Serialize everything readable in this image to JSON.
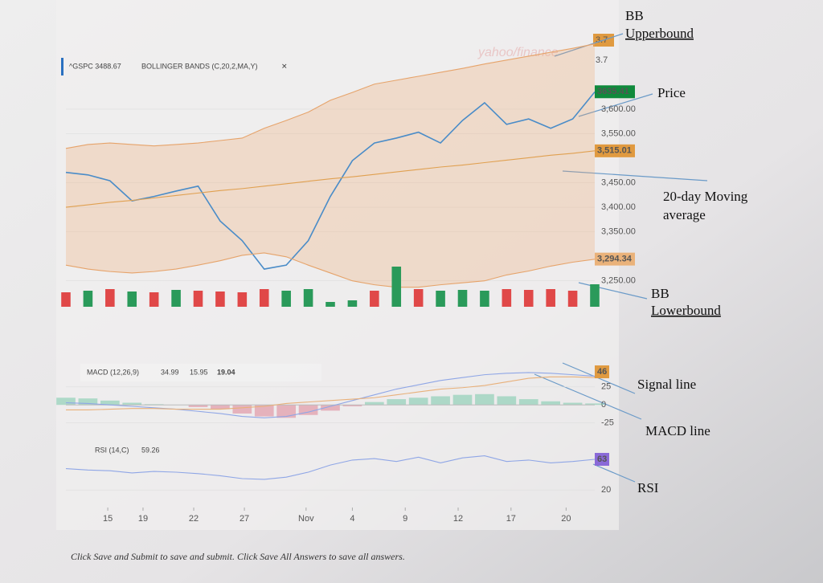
{
  "chart_data": [
    {
      "type": "line",
      "title": "^GSPC 3488.67",
      "indicator": "BOLLINGER BANDS (C,20,2,MA,Y)",
      "x": [
        0,
        1,
        2,
        3,
        4,
        5,
        6,
        7,
        8,
        9,
        10,
        11,
        12,
        13,
        14,
        15,
        16,
        17,
        18,
        19,
        20,
        21,
        22,
        23,
        24
      ],
      "xlim": [
        0,
        24
      ],
      "ylim": [
        3225,
        3757
      ],
      "yticks": [
        {
          "value": 3250,
          "label": "3,250.00"
        },
        {
          "value": 3350,
          "label": "3,350.00"
        },
        {
          "value": 3400,
          "label": "3,400.00"
        },
        {
          "value": 3450,
          "label": "3,450.00"
        },
        {
          "value": 3550,
          "label": "3,550.00"
        },
        {
          "value": 3600,
          "label": "3,600.00"
        }
      ],
      "series": [
        {
          "name": "Price",
          "color": "#4a8cc8",
          "values": [
            3471,
            3466,
            3454,
            3413,
            3422,
            3433,
            3443,
            3372,
            3332,
            3274,
            3282,
            3332,
            3422,
            3495,
            3531,
            3541,
            3553,
            3531,
            3577,
            3613,
            3569,
            3580,
            3561,
            3580,
            3635
          ]
        },
        {
          "name": "BB Upperbound",
          "color": "#e6a36a",
          "values": [
            3520,
            3528,
            3531,
            3528,
            3525,
            3528,
            3531,
            3536,
            3541,
            3561,
            3577,
            3594,
            3618,
            3634,
            3651,
            3659,
            3667,
            3675,
            3683,
            3692,
            3700,
            3708,
            3716,
            3724,
            3733
          ]
        },
        {
          "name": "BB Lowerbound",
          "color": "#e6a36a",
          "values": [
            3282,
            3274,
            3269,
            3266,
            3269,
            3274,
            3282,
            3291,
            3302,
            3307,
            3299,
            3282,
            3266,
            3250,
            3242,
            3237,
            3237,
            3242,
            3246,
            3250,
            3262,
            3270,
            3280,
            3288,
            3294
          ]
        },
        {
          "name": "20-day Moving average",
          "color": "#e0a050",
          "values": [
            3400,
            3405,
            3410,
            3414,
            3419,
            3424,
            3429,
            3434,
            3438,
            3443,
            3448,
            3453,
            3458,
            3462,
            3467,
            3472,
            3477,
            3482,
            3486,
            3491,
            3496,
            3501,
            3506,
            3510,
            3515
          ]
        }
      ],
      "badges": [
        {
          "value": 3635.41,
          "label": "3635.41",
          "color": "#108a3c"
        },
        {
          "value": 3515.01,
          "label": "3,515.01",
          "color": "#e09a40"
        },
        {
          "value": 3294.34,
          "label": "3,294.34",
          "color": "#eab27a"
        }
      ],
      "top_labels": [
        "3.7",
        "3.7"
      ],
      "watermark": "yahoo/finance"
    },
    {
      "type": "bar",
      "x": [
        0,
        1,
        2,
        3,
        4,
        5,
        6,
        7,
        8,
        9,
        10,
        11,
        12,
        13,
        14,
        15,
        16,
        17,
        18,
        19,
        20,
        21,
        22,
        23,
        24
      ],
      "xlim": [
        0,
        24
      ],
      "ylim": [
        0,
        60
      ],
      "values": [
        18,
        20,
        22,
        19,
        18,
        21,
        20,
        19,
        18,
        22,
        20,
        22,
        6,
        8,
        20,
        50,
        22,
        20,
        21,
        20,
        22,
        21,
        22,
        20,
        28
      ],
      "colors": [
        "#e04848",
        "#2a9a5a",
        "#e04848",
        "#2a9a5a",
        "#e04848",
        "#2a9a5a",
        "#e04848",
        "#e04848",
        "#e04848",
        "#e04848",
        "#2a9a5a",
        "#2a9a5a",
        "#2a9a5a",
        "#2a9a5a",
        "#e04848",
        "#2a9a5a",
        "#e04848",
        "#2a9a5a",
        "#2a9a5a",
        "#2a9a5a",
        "#e04848",
        "#e04848",
        "#e04848",
        "#e04848",
        "#2a9a5a"
      ]
    },
    {
      "type": "line",
      "title": "MACD (12,26,9)",
      "readings": [
        "34.99",
        "15.95",
        "19.04"
      ],
      "x": [
        0,
        1,
        2,
        3,
        4,
        5,
        6,
        7,
        8,
        9,
        10,
        11,
        12,
        13,
        14,
        15,
        16,
        17,
        18,
        19,
        20,
        21,
        22,
        23,
        24
      ],
      "xlim": [
        0,
        24
      ],
      "ylim": [
        -40,
        55
      ],
      "yticks": [
        -25,
        0,
        25
      ],
      "histogram": [
        10,
        9,
        6,
        3,
        1,
        0,
        -3,
        -6,
        -12,
        -16,
        -18,
        -14,
        -8,
        -2,
        4,
        8,
        10,
        12,
        14,
        15,
        12,
        8,
        5,
        3,
        2
      ],
      "series": [
        {
          "name": "MACD line",
          "color": "#8fa6e6",
          "values": [
            3,
            2,
            0,
            -2,
            -4,
            -6,
            -9,
            -12,
            -16,
            -18,
            -16,
            -10,
            -2,
            6,
            14,
            22,
            28,
            34,
            38,
            42,
            44,
            45,
            44,
            42,
            40
          ]
        },
        {
          "name": "Signal line",
          "color": "#e8b07a",
          "values": [
            -7,
            -7,
            -6,
            -5,
            -5,
            -6,
            -6,
            -6,
            -4,
            -2,
            2,
            4,
            6,
            8,
            10,
            14,
            18,
            22,
            24,
            27,
            32,
            37,
            39,
            39,
            38
          ]
        }
      ],
      "badges": [
        {
          "value": 46,
          "label": "46",
          "color": "#e09a40"
        }
      ]
    },
    {
      "type": "line",
      "title": "RSI (14,C)",
      "readings": [
        "59.26"
      ],
      "x": [
        0,
        1,
        2,
        3,
        4,
        5,
        6,
        7,
        8,
        9,
        10,
        11,
        12,
        13,
        14,
        15,
        16,
        17,
        18,
        19,
        20,
        21,
        22,
        23,
        24
      ],
      "xlim": [
        0,
        24
      ],
      "ylim": [
        9,
        90
      ],
      "yticks": [
        20
      ],
      "series": [
        {
          "name": "RSI",
          "color": "#8fa6e6",
          "values": [
            50,
            48,
            47,
            44,
            46,
            45,
            43,
            40,
            36,
            35,
            38,
            45,
            55,
            62,
            64,
            60,
            66,
            58,
            65,
            68,
            60,
            62,
            58,
            60,
            63
          ]
        }
      ],
      "badges": [
        {
          "value": 63,
          "label": "63",
          "color": "#8a6ad8"
        }
      ],
      "xticks": [
        {
          "value": 1.9,
          "label": "15"
        },
        {
          "value": 3.5,
          "label": "19"
        },
        {
          "value": 5.8,
          "label": "22"
        },
        {
          "value": 8.1,
          "label": "27"
        },
        {
          "value": 10.9,
          "label": "Nov"
        },
        {
          "value": 13,
          "label": "4"
        },
        {
          "value": 15.4,
          "label": "9"
        },
        {
          "value": 17.8,
          "label": "12"
        },
        {
          "value": 20.2,
          "label": "17"
        },
        {
          "value": 22.7,
          "label": "20"
        }
      ]
    }
  ],
  "annotations": [
    [
      "BB",
      "Upperbound"
    ],
    [
      "Price"
    ],
    [
      "20-day Moving",
      "average"
    ],
    [
      "BB",
      "Lowerbound"
    ],
    [
      "Signal line"
    ],
    [
      "MACD line"
    ],
    [
      "RSI"
    ]
  ],
  "footer": "Click Save and Submit to save and submit. Click Save All Answers to save all answers."
}
